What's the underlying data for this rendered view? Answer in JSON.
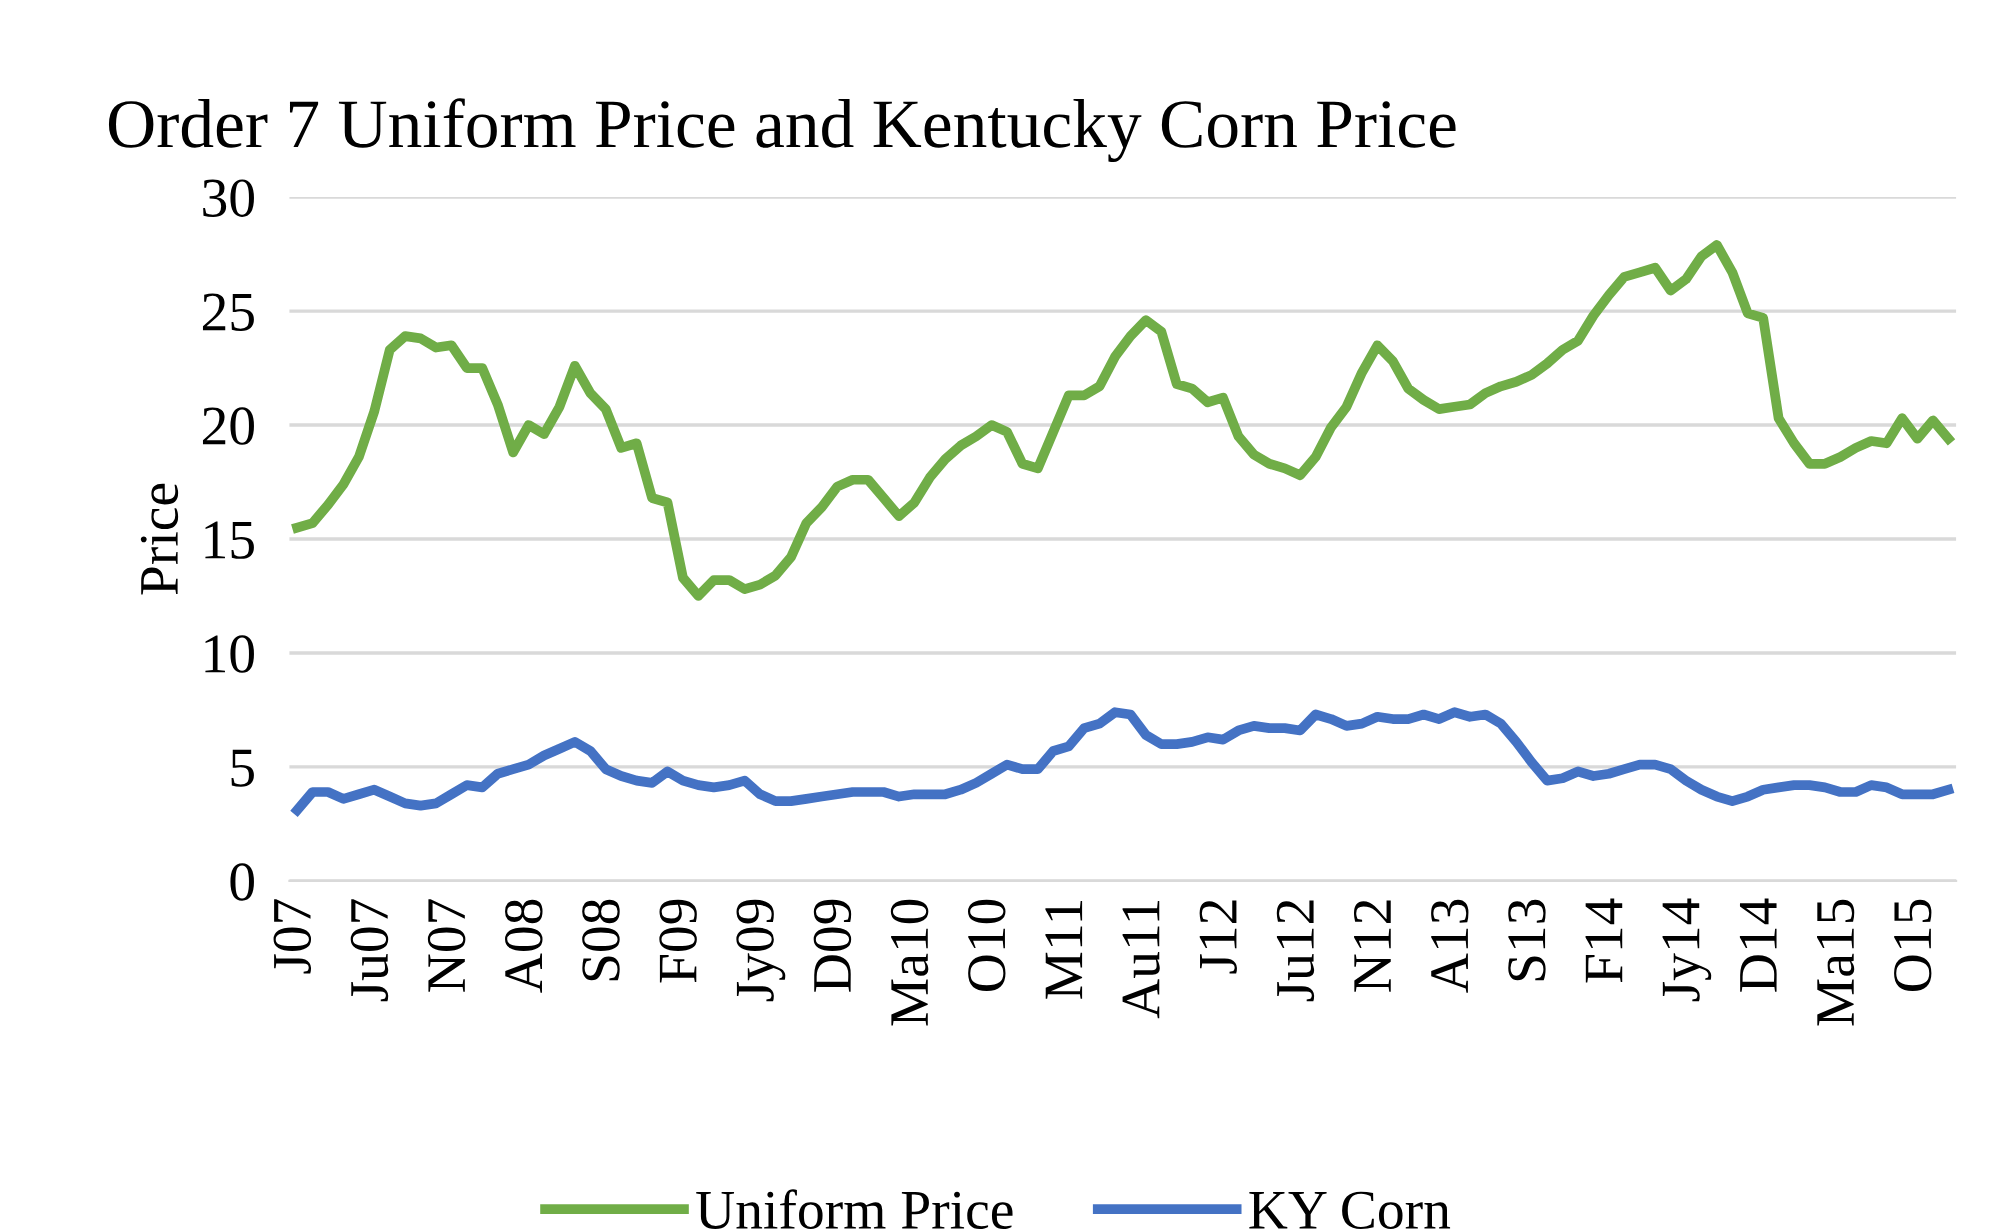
{
  "chart_data": {
    "type": "line",
    "title": "Order 7 Uniform Price and Kentucky Corn Price",
    "ylabel": "Price",
    "categories": [
      "J07",
      null,
      null,
      null,
      null,
      "Ju07",
      null,
      null,
      null,
      null,
      "N07",
      null,
      null,
      null,
      null,
      "A08",
      null,
      null,
      null,
      null,
      "S08",
      null,
      null,
      null,
      null,
      "F09",
      null,
      null,
      null,
      null,
      "Jy09",
      null,
      null,
      null,
      null,
      "D09",
      null,
      null,
      null,
      null,
      "Ma10",
      null,
      null,
      null,
      null,
      "O10",
      null,
      null,
      null,
      null,
      "M11",
      null,
      null,
      null,
      null,
      "Au11",
      null,
      null,
      null,
      null,
      "J12",
      null,
      null,
      null,
      null,
      "Ju12",
      null,
      null,
      null,
      null,
      "N12",
      null,
      null,
      null,
      null,
      "A13",
      null,
      null,
      null,
      null,
      "S13",
      null,
      null,
      null,
      null,
      "F14",
      null,
      null,
      null,
      null,
      "Jy14",
      null,
      null,
      null,
      null,
      "D14",
      null,
      null,
      null,
      null,
      "Ma15",
      null,
      null,
      null,
      null,
      "O15",
      null,
      null
    ],
    "series": [
      {
        "name": "Uniform Price",
        "color": "#70ad47",
        "values": [
          15.5,
          15.7,
          16.5,
          17.4,
          18.6,
          20.6,
          23.3,
          23.9,
          23.8,
          23.4,
          23.5,
          22.5,
          22.5,
          20.9,
          18.8,
          20.0,
          19.6,
          20.8,
          22.6,
          21.4,
          20.7,
          19.0,
          19.2,
          16.8,
          16.6,
          13.3,
          12.5,
          13.2,
          13.2,
          12.8,
          13.0,
          13.4,
          14.2,
          15.7,
          16.4,
          17.3,
          17.6,
          17.6,
          16.8,
          16.0,
          16.6,
          17.7,
          18.5,
          19.1,
          19.5,
          20.0,
          19.7,
          18.3,
          18.1,
          19.7,
          21.3,
          21.3,
          21.7,
          23.0,
          23.9,
          24.6,
          24.1,
          21.8,
          21.6,
          21.0,
          21.2,
          19.5,
          18.7,
          18.3,
          18.1,
          17.8,
          18.6,
          19.9,
          20.8,
          22.3,
          23.5,
          22.8,
          21.6,
          21.1,
          20.7,
          20.8,
          20.9,
          21.4,
          21.7,
          21.9,
          22.2,
          22.7,
          23.3,
          23.7,
          24.8,
          25.7,
          26.5,
          26.7,
          26.9,
          25.9,
          26.4,
          27.4,
          27.9,
          26.7,
          24.9,
          24.7,
          20.3,
          19.2,
          18.3,
          18.3,
          18.6,
          19.0,
          19.3,
          19.2,
          20.3,
          19.4,
          20.2,
          19.4
        ]
      },
      {
        "name": "KY Corn",
        "color": "#4472c4",
        "values": [
          3.1,
          3.9,
          3.9,
          3.6,
          3.8,
          4.0,
          3.7,
          3.4,
          3.3,
          3.4,
          3.8,
          4.2,
          4.1,
          4.7,
          4.9,
          5.1,
          5.5,
          5.8,
          6.1,
          5.7,
          4.9,
          4.6,
          4.4,
          4.3,
          4.8,
          4.4,
          4.2,
          4.1,
          4.2,
          4.4,
          3.8,
          3.5,
          3.5,
          3.6,
          3.7,
          3.8,
          3.9,
          3.9,
          3.9,
          3.7,
          3.8,
          3.8,
          3.8,
          4.0,
          4.3,
          4.7,
          5.1,
          4.9,
          4.9,
          5.7,
          5.9,
          6.7,
          6.9,
          7.4,
          7.3,
          6.4,
          6.0,
          6.0,
          6.1,
          6.3,
          6.2,
          6.6,
          6.8,
          6.7,
          6.7,
          6.6,
          7.3,
          7.1,
          6.8,
          6.9,
          7.2,
          7.1,
          7.1,
          7.3,
          7.1,
          7.4,
          7.2,
          7.3,
          6.9,
          6.1,
          5.2,
          4.4,
          4.5,
          4.8,
          4.6,
          4.7,
          4.9,
          5.1,
          5.1,
          4.9,
          4.4,
          4.0,
          3.7,
          3.5,
          3.7,
          4.0,
          4.1,
          4.2,
          4.2,
          4.1,
          3.9,
          3.9,
          4.2,
          4.1,
          3.8,
          3.8,
          3.8,
          4.0
        ]
      }
    ],
    "ylim": [
      0,
      30
    ],
    "yticks": [
      0,
      5,
      10,
      15,
      20,
      25,
      30
    ],
    "grid": "y",
    "legend": "bottom",
    "marker": "none",
    "line_style": "solid"
  }
}
